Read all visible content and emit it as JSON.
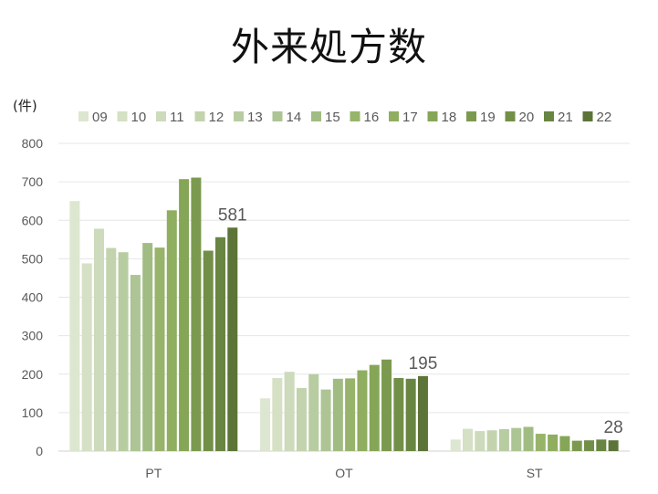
{
  "chart_data": {
    "type": "bar",
    "title": "外来処方数",
    "y_unit": "(件)",
    "ylabel": "",
    "xlabel": "",
    "ylim": [
      0,
      800
    ],
    "yticks": [
      0,
      100,
      200,
      300,
      400,
      500,
      600,
      700,
      800
    ],
    "grid": true,
    "legend_position": "top",
    "categories": [
      "PT",
      "OT",
      "ST"
    ],
    "series": [
      {
        "name": "09",
        "color": "#dde6d0",
        "values": [
          650,
          137,
          30
        ]
      },
      {
        "name": "10",
        "color": "#d5e0c4",
        "values": [
          488,
          190,
          58
        ]
      },
      {
        "name": "11",
        "color": "#cddabb",
        "values": [
          578,
          206,
          52
        ]
      },
      {
        "name": "12",
        "color": "#c3d3ae",
        "values": [
          528,
          164,
          54
        ]
      },
      {
        "name": "13",
        "color": "#b8cca2",
        "values": [
          517,
          200,
          57
        ]
      },
      {
        "name": "14",
        "color": "#adc494",
        "values": [
          458,
          160,
          60
        ]
      },
      {
        "name": "15",
        "color": "#a1bc82",
        "values": [
          541,
          188,
          63
        ]
      },
      {
        "name": "16",
        "color": "#97b46a",
        "values": [
          529,
          189,
          45
        ]
      },
      {
        "name": "17",
        "color": "#8fae60",
        "values": [
          626,
          210,
          43
        ]
      },
      {
        "name": "18",
        "color": "#86a657",
        "values": [
          707,
          224,
          39
        ]
      },
      {
        "name": "19",
        "color": "#7b9a4f",
        "values": [
          711,
          238,
          27
        ]
      },
      {
        "name": "20",
        "color": "#728f48",
        "values": [
          521,
          190,
          28
        ]
      },
      {
        "name": "21",
        "color": "#688541",
        "values": [
          556,
          188,
          30
        ]
      },
      {
        "name": "22",
        "color": "#5c7437",
        "values": [
          581,
          195,
          28
        ]
      }
    ],
    "data_labels": [
      {
        "series": "22",
        "category": "PT",
        "text": "581"
      },
      {
        "series": "22",
        "category": "OT",
        "text": "195"
      },
      {
        "series": "22",
        "category": "ST",
        "text": "28"
      }
    ]
  }
}
